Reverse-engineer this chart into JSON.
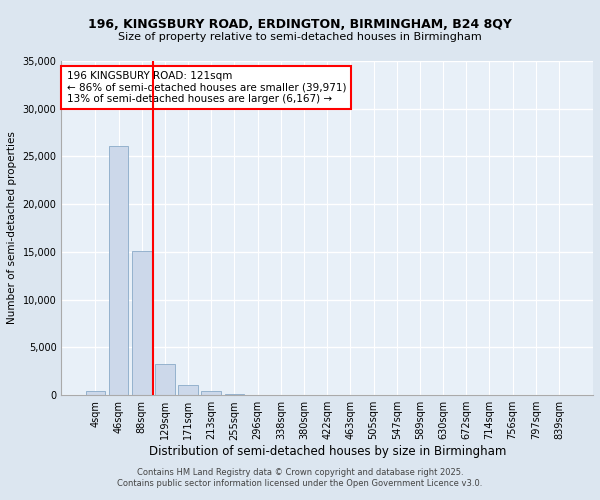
{
  "title_line1": "196, KINGSBURY ROAD, ERDINGTON, BIRMINGHAM, B24 8QY",
  "title_line2": "Size of property relative to semi-detached houses in Birmingham",
  "xlabel": "Distribution of semi-detached houses by size in Birmingham",
  "ylabel": "Number of semi-detached properties",
  "categories": [
    "4sqm",
    "46sqm",
    "88sqm",
    "129sqm",
    "171sqm",
    "213sqm",
    "255sqm",
    "296sqm",
    "338sqm",
    "380sqm",
    "422sqm",
    "463sqm",
    "505sqm",
    "547sqm",
    "589sqm",
    "630sqm",
    "672sqm",
    "714sqm",
    "756sqm",
    "797sqm",
    "839sqm"
  ],
  "values": [
    400,
    26100,
    15100,
    3300,
    1050,
    450,
    120,
    30,
    0,
    0,
    0,
    0,
    0,
    0,
    0,
    0,
    0,
    0,
    0,
    0,
    0
  ],
  "bar_color": "#ccd8ea",
  "bar_edge_color": "#8aaac8",
  "vline_color": "red",
  "vline_position": 2.5,
  "ylim": [
    0,
    35000
  ],
  "yticks": [
    0,
    5000,
    10000,
    15000,
    20000,
    25000,
    30000,
    35000
  ],
  "annotation_text": "196 KINGSBURY ROAD: 121sqm\n← 86% of semi-detached houses are smaller (39,971)\n13% of semi-detached houses are larger (6,167) →",
  "annotation_box_facecolor": "white",
  "annotation_box_edgecolor": "red",
  "footer_line1": "Contains HM Land Registry data © Crown copyright and database right 2025.",
  "footer_line2": "Contains public sector information licensed under the Open Government Licence v3.0.",
  "bg_color": "#dce6f0",
  "plot_bg_color": "#e8f0f8"
}
